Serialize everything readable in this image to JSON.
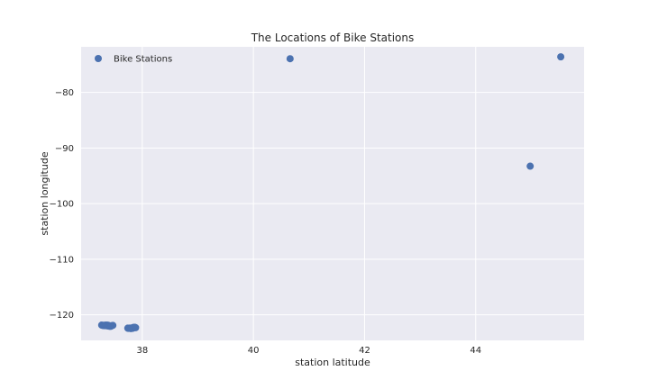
{
  "chart_data": {
    "type": "scatter",
    "title": "The Locations of Bike Stations",
    "xlabel": "station latitude",
    "ylabel": "station longitude",
    "xlim": [
      36.9,
      45.95
    ],
    "ylim": [
      -124.6,
      -71.8
    ],
    "xticks": [
      38,
      40,
      42,
      44
    ],
    "yticks": [
      -80,
      -90,
      -100,
      -110,
      -120
    ],
    "grid": true,
    "legend_position": "upper-left",
    "colors": {
      "background": "#EAEAF2",
      "grid": "#FFFFFF",
      "marker": "#4C72B0"
    },
    "series": [
      {
        "name": "Bike Stations",
        "points": [
          [
            37.27,
            -121.85
          ],
          [
            37.29,
            -121.92
          ],
          [
            37.31,
            -121.88
          ],
          [
            37.32,
            -121.95
          ],
          [
            37.33,
            -121.89
          ],
          [
            37.34,
            -121.93
          ],
          [
            37.35,
            -121.84
          ],
          [
            37.36,
            -121.97
          ],
          [
            37.37,
            -121.91
          ],
          [
            37.38,
            -121.86
          ],
          [
            37.39,
            -122.02
          ],
          [
            37.4,
            -121.94
          ],
          [
            37.41,
            -122.05
          ],
          [
            37.42,
            -121.98
          ],
          [
            37.43,
            -122.07
          ],
          [
            37.44,
            -122.01
          ],
          [
            37.45,
            -121.96
          ],
          [
            37.47,
            -121.9
          ],
          [
            37.74,
            -122.4
          ],
          [
            37.75,
            -122.44
          ],
          [
            37.76,
            -122.42
          ],
          [
            37.77,
            -122.39
          ],
          [
            37.78,
            -122.41
          ],
          [
            37.78,
            -122.45
          ],
          [
            37.79,
            -122.4
          ],
          [
            37.79,
            -122.43
          ],
          [
            37.8,
            -122.42
          ],
          [
            37.8,
            -122.47
          ],
          [
            37.81,
            -122.38
          ],
          [
            37.82,
            -122.44
          ],
          [
            37.83,
            -122.41
          ],
          [
            37.84,
            -122.27
          ],
          [
            37.85,
            -122.3
          ],
          [
            37.86,
            -122.26
          ],
          [
            37.87,
            -122.28
          ],
          [
            37.88,
            -122.31
          ],
          [
            40.66,
            -73.94
          ],
          [
            44.98,
            -93.27
          ],
          [
            45.53,
            -73.6
          ]
        ]
      }
    ]
  }
}
